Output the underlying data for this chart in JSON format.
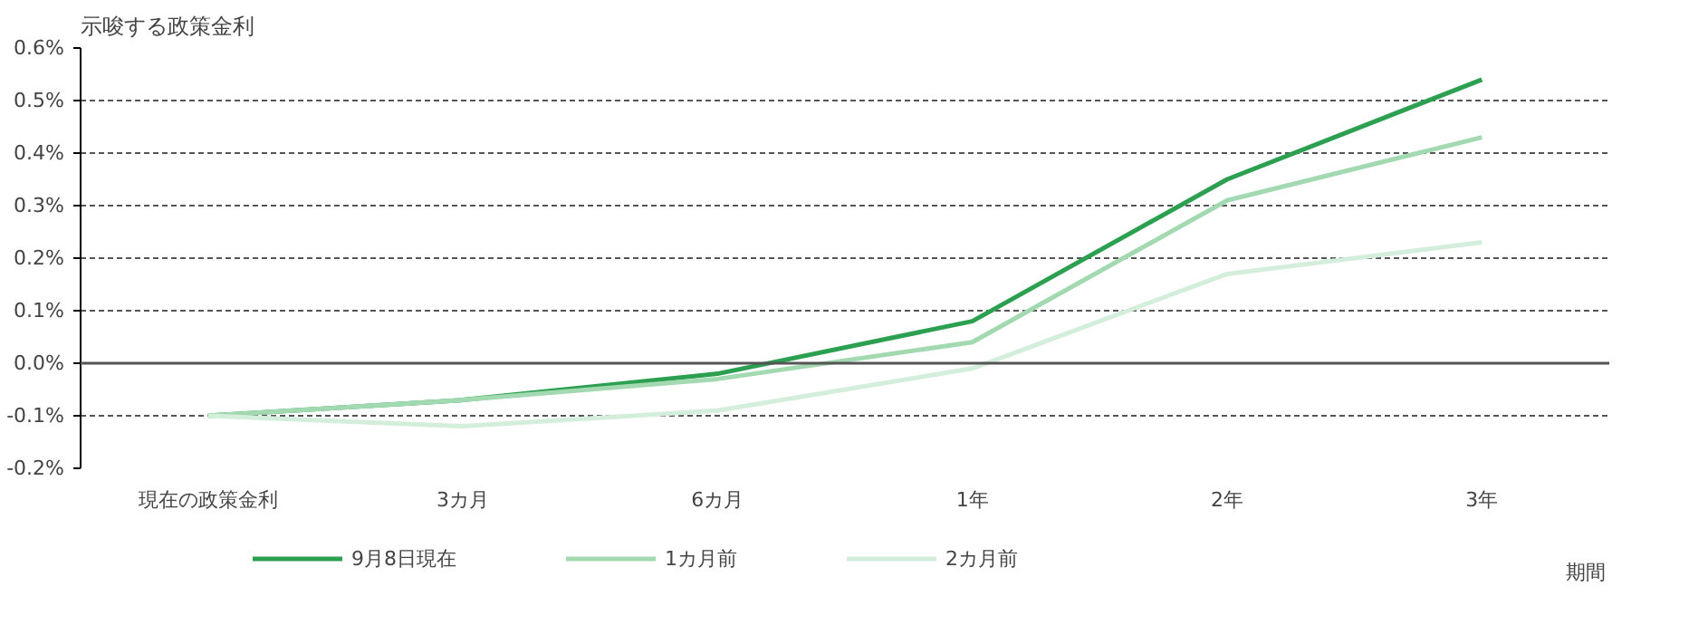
{
  "chart_data": {
    "type": "line",
    "ylabel": "示唆する政策金利",
    "xlabel": "期間",
    "categories": [
      "現在の政策金利",
      "3カ月",
      "6カ月",
      "1年",
      "2年",
      "3年"
    ],
    "series": [
      {
        "name": "9月8日現在",
        "color": "#2ca050",
        "values": [
          -0.1,
          -0.07,
          -0.02,
          0.08,
          0.35,
          0.54
        ]
      },
      {
        "name": "1カ月前",
        "color": "#a3d9b1",
        "values": [
          -0.1,
          -0.07,
          -0.03,
          0.04,
          0.31,
          0.43
        ]
      },
      {
        "name": "2カ月前",
        "color": "#d3eedb",
        "values": [
          -0.1,
          -0.12,
          -0.09,
          -0.01,
          0.17,
          0.23
        ]
      }
    ],
    "ylim": [
      -0.2,
      0.6
    ],
    "yticks": [
      {
        "value": -0.2,
        "label": "-0.2%"
      },
      {
        "value": -0.1,
        "label": "-0.1%"
      },
      {
        "value": 0,
        "label": "0.0%"
      },
      {
        "value": 0.1,
        "label": "0.1%"
      },
      {
        "value": 0.2,
        "label": "0.2%"
      },
      {
        "value": 0.3,
        "label": "0.3%"
      },
      {
        "value": 0.4,
        "label": "0.4%"
      },
      {
        "value": 0.5,
        "label": "0.5%"
      },
      {
        "value": 0.6,
        "label": "0.6%"
      }
    ],
    "grid": "y",
    "legend": "bottom",
    "marker": "none",
    "line_style": "solid"
  }
}
